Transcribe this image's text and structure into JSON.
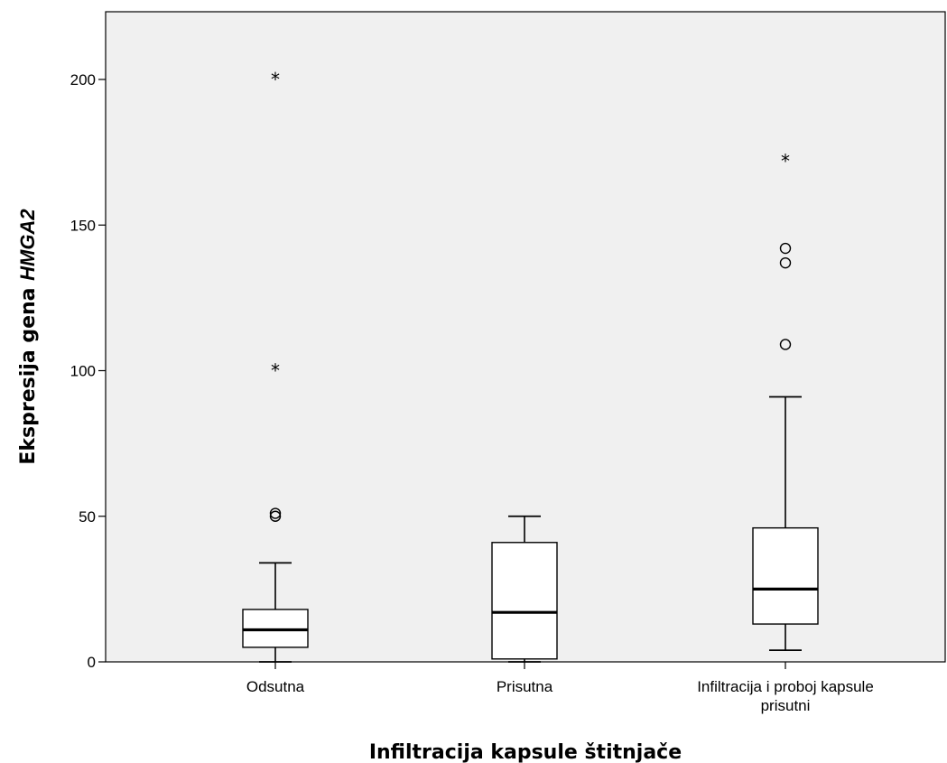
{
  "chart_data": {
    "type": "boxplot",
    "xlabel": "Infiltracija kapsule štitnjače",
    "ylabel_prefix": "Ekspresija gena ",
    "ylabel_emphasis": "HMGA2",
    "ylim": [
      0,
      200
    ],
    "yticks": [
      "0",
      "50",
      "100",
      "150",
      "200"
    ],
    "ytick_values": [
      0,
      50,
      100,
      150,
      200
    ],
    "grid": false,
    "background": "#f0f0f0",
    "categories": [
      {
        "label_lines": [
          "Odsutna"
        ],
        "min": 0,
        "q1": 5,
        "median": 11,
        "q3": 18,
        "max": 34,
        "outliers_circle": [
          50,
          51
        ],
        "outliers_star": [
          100,
          200
        ]
      },
      {
        "label_lines": [
          "Prisutna"
        ],
        "min": 0,
        "q1": 1,
        "median": 17,
        "q3": 41,
        "max": 50,
        "outliers_circle": [],
        "outliers_star": []
      },
      {
        "label_lines": [
          "Infiltracija i proboj kapsule",
          "prisutni"
        ],
        "min": 4,
        "q1": 13,
        "median": 25,
        "q3": 46,
        "max": 91,
        "outliers_circle": [
          109,
          137,
          142
        ],
        "outliers_star": [
          172
        ]
      }
    ]
  }
}
